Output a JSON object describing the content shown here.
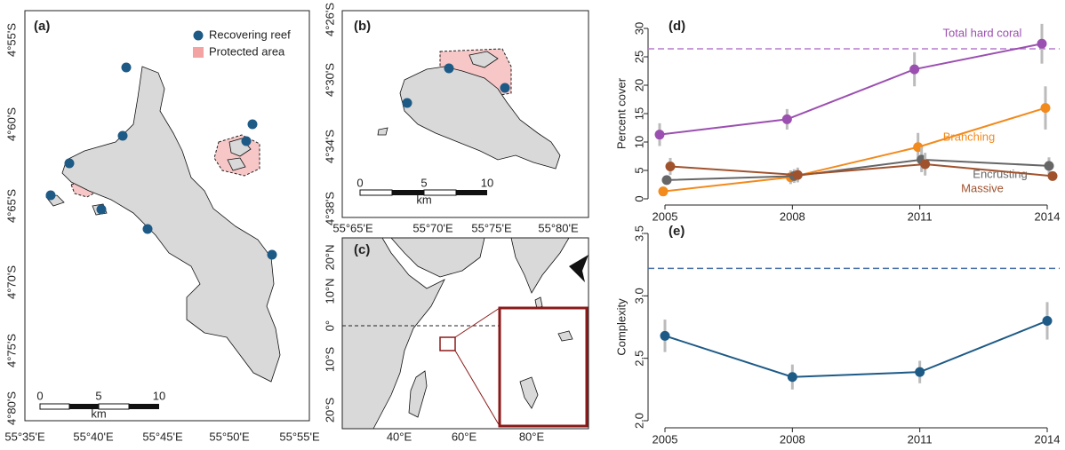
{
  "maps": {
    "a": {
      "label": "(a)",
      "legend": [
        "Recovering reef",
        "Protected area"
      ],
      "yticks": [
        "4°55'S",
        "4°60'S",
        "4°65'S",
        "4°70'S",
        "4°75'S",
        "4°80'S"
      ],
      "xticks": [
        "55°35'E",
        "55°40'E",
        "55°45'E",
        "55°50'E",
        "55°55'E"
      ],
      "scale": [
        "0",
        "5",
        "10",
        "km"
      ]
    },
    "b": {
      "label": "(b)",
      "yticks": [
        "4°26'S",
        "4°30'S",
        "4°34'S",
        "4°38'S"
      ],
      "xticks": [
        "55°65'E",
        "55°70'E",
        "55°75'E",
        "55°80'E"
      ],
      "scale": [
        "0",
        "5",
        "10",
        "km"
      ]
    },
    "c": {
      "label": "(c)",
      "yticks": [
        "20°N",
        "10°N",
        "0°",
        "10°S",
        "20°S"
      ],
      "xticks": [
        "40°E",
        "60°E",
        "80°E"
      ]
    }
  },
  "chart_data": [
    {
      "type": "line",
      "panel_label": "(d)",
      "ylabel": "Percent cover",
      "x": [
        2005,
        2008,
        2011,
        2014
      ],
      "xlim": [
        2005,
        2014
      ],
      "xticks": [
        2005,
        2008,
        2011,
        2014
      ],
      "ylim": [
        0,
        30
      ],
      "yticks": [
        0,
        5,
        10,
        15,
        20,
        25,
        30
      ],
      "reference_line": {
        "value": 26.4,
        "color": "#b57ccc"
      },
      "series": [
        {
          "name": "Total hard coral",
          "color": "#9b4fb0",
          "values": [
            11.3,
            14.0,
            22.8,
            27.3
          ],
          "errors": [
            2.0,
            1.8,
            3.0,
            3.5
          ]
        },
        {
          "name": "Branching",
          "color": "#f28a1c",
          "values": [
            1.3,
            3.8,
            9.1,
            16.0
          ],
          "errors": [
            0.6,
            1.2,
            2.5,
            3.8
          ]
        },
        {
          "name": "Encrusting",
          "color": "#666666",
          "values": [
            3.3,
            4.0,
            6.9,
            5.8
          ],
          "errors": [
            0.8,
            1.2,
            2.2,
            1.5
          ]
        },
        {
          "name": "Massive",
          "color": "#a0522d",
          "values": [
            5.7,
            4.2,
            6.1,
            4.0
          ],
          "errors": [
            1.5,
            1.3,
            2.0,
            0.8
          ]
        }
      ]
    },
    {
      "type": "line",
      "panel_label": "(e)",
      "ylabel": "Complexity",
      "x": [
        2005,
        2008,
        2011,
        2014
      ],
      "xlim": [
        2005,
        2014
      ],
      "xticks": [
        2005,
        2008,
        2011,
        2014
      ],
      "ylim": [
        2.0,
        3.5
      ],
      "yticks": [
        {
          "value": 2,
          "label": "2.0"
        },
        2.5,
        {
          "value": 3,
          "label": "3.0"
        },
        {
          "value": 3.5,
          "label": "3.5"
        }
      ],
      "reference_line": {
        "value": 3.22,
        "color": "#4a72a8"
      },
      "color": "#1d5a86",
      "values": [
        2.68,
        2.35,
        2.39,
        2.8
      ],
      "errors": [
        0.13,
        0.1,
        0.09,
        0.15
      ]
    }
  ]
}
